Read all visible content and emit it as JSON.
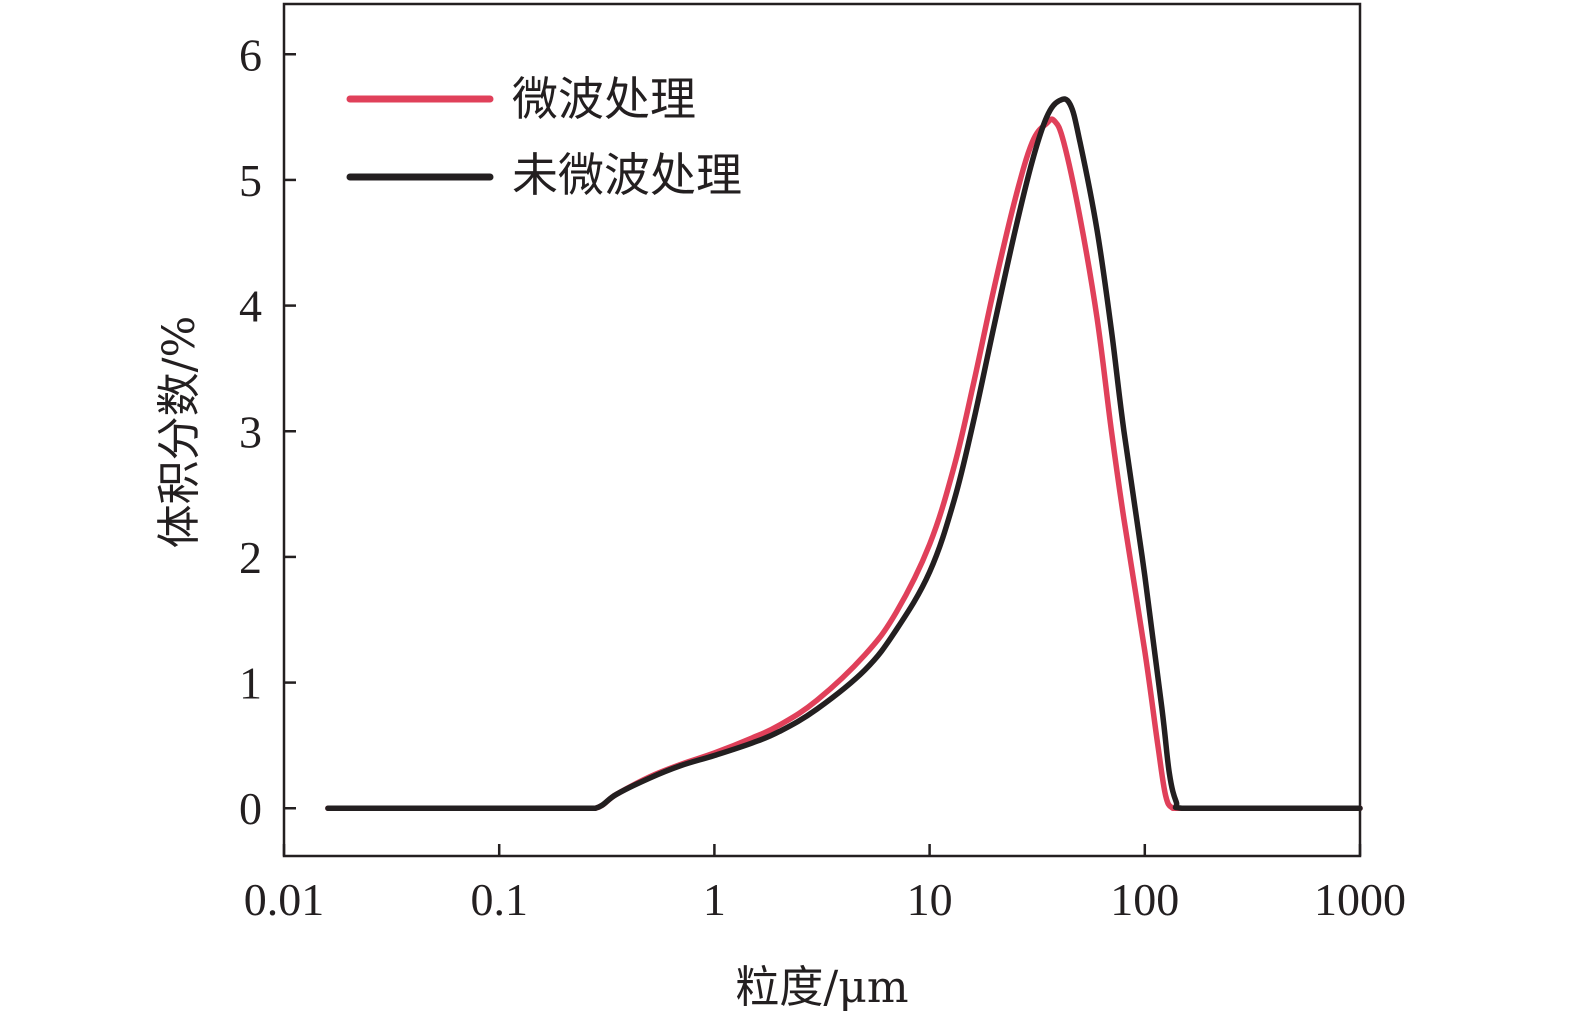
{
  "chart_data": {
    "type": "line",
    "title": "",
    "xlabel": "粒度/μm",
    "ylabel": "体积分数/%",
    "x_scale": "log",
    "xlim": [
      0.01,
      1000
    ],
    "ylim": [
      -0.38,
      6.4
    ],
    "x_ticks": [
      0.01,
      0.1,
      1,
      10,
      100,
      1000
    ],
    "x_tick_labels": [
      "0.01",
      "0.1",
      "1",
      "10",
      "100",
      "1000"
    ],
    "y_ticks": [
      0,
      1,
      2,
      3,
      4,
      5,
      6
    ],
    "y_tick_labels": [
      "0",
      "1",
      "2",
      "3",
      "4",
      "5",
      "6"
    ],
    "grid": false,
    "legend_position": "top-left",
    "series": [
      {
        "name": "微波处理",
        "color": "#e0405a",
        "x": [
          0.016,
          0.05,
          0.1,
          0.2,
          0.28,
          0.35,
          0.5,
          0.7,
          1,
          1.5,
          2,
          3,
          5,
          7,
          10,
          13,
          16,
          20,
          25,
          30,
          35,
          38,
          42,
          50,
          60,
          70,
          80,
          100,
          115,
          125,
          135,
          150,
          300,
          1000
        ],
        "y": [
          0,
          0,
          0,
          0,
          0,
          0.11,
          0.25,
          0.35,
          0.44,
          0.56,
          0.66,
          0.86,
          1.22,
          1.56,
          2.1,
          2.72,
          3.38,
          4.15,
          4.85,
          5.3,
          5.45,
          5.47,
          5.3,
          4.7,
          3.9,
          3.0,
          2.3,
          1.25,
          0.5,
          0.1,
          0,
          0,
          0,
          0
        ]
      },
      {
        "name": "未微波处理",
        "color": "#231f20",
        "x": [
          0.016,
          0.05,
          0.1,
          0.2,
          0.28,
          0.35,
          0.5,
          0.7,
          1,
          1.5,
          2,
          3,
          5,
          7,
          10,
          13,
          16,
          20,
          25,
          30,
          35,
          40,
          45,
          50,
          60,
          70,
          80,
          100,
          120,
          130,
          140,
          150,
          300,
          1000
        ],
        "y": [
          0,
          0,
          0,
          0,
          0,
          0.11,
          0.24,
          0.34,
          0.42,
          0.52,
          0.61,
          0.79,
          1.1,
          1.42,
          1.88,
          2.45,
          3.08,
          3.85,
          4.6,
          5.15,
          5.5,
          5.63,
          5.6,
          5.3,
          4.6,
          3.8,
          3.0,
          1.85,
          0.8,
          0.28,
          0.05,
          0,
          0,
          0
        ]
      }
    ]
  }
}
